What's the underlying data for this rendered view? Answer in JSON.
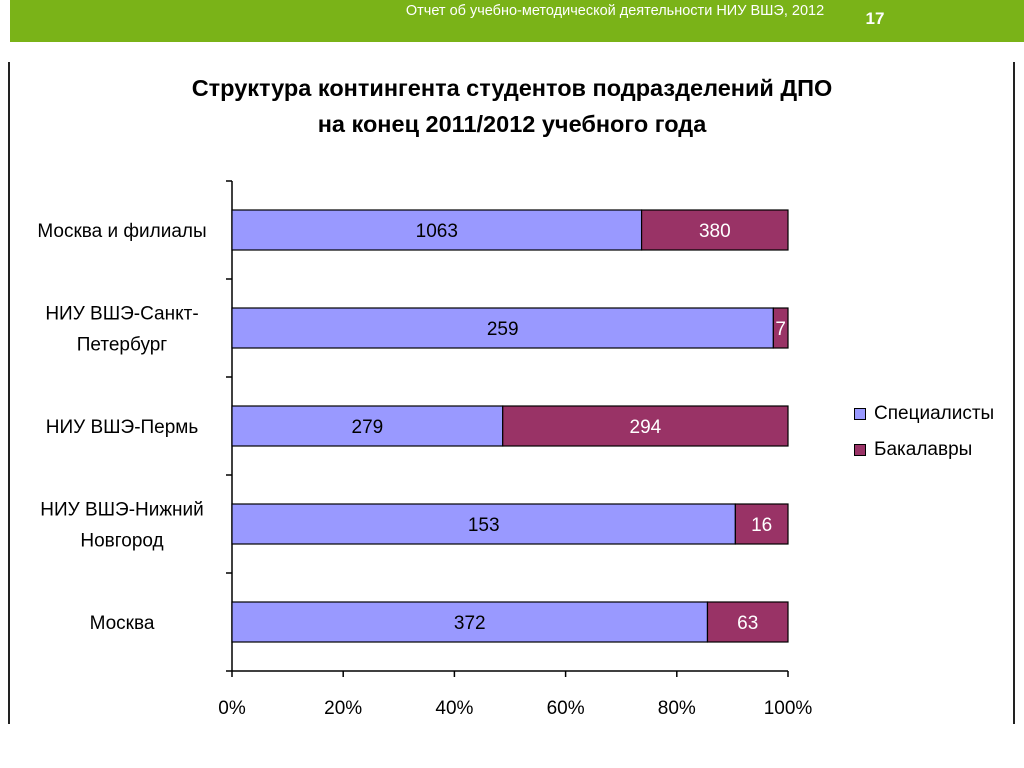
{
  "header": {
    "report_title": "Отчет об учебно-методической деятельности НИУ ВШЭ, 2012",
    "page_number": "17"
  },
  "colors": {
    "brand_green": "#7ab318",
    "specialists": "#9999ff",
    "bachelors": "#993366"
  },
  "chart_data": {
    "type": "bar",
    "orientation": "horizontal",
    "stacked": "percent",
    "title_line1": "Структура контингента студентов подразделений ДПО",
    "title_line2": "на конец 2011/2012 учебного года",
    "categories": [
      "Москва и филиалы",
      "НИУ ВШЭ-Санкт-Петербург",
      "НИУ ВШЭ-Пермь",
      "НИУ ВШЭ-Нижний Новгород",
      "Москва"
    ],
    "category_lines": [
      [
        "Москва и филиалы"
      ],
      [
        "НИУ ВШЭ-Санкт-",
        "Петербург"
      ],
      [
        "НИУ ВШЭ-Пермь"
      ],
      [
        "НИУ ВШЭ-Нижний",
        "Новгород"
      ],
      [
        "Москва"
      ]
    ],
    "series": [
      {
        "name": "Специалисты",
        "values": [
          1063,
          259,
          279,
          153,
          372
        ]
      },
      {
        "name": "Бакалавры",
        "values": [
          380,
          7,
          294,
          16,
          63
        ]
      }
    ],
    "x_ticks": [
      "0%",
      "20%",
      "40%",
      "60%",
      "80%",
      "100%"
    ],
    "xlim": [
      0,
      100
    ],
    "grid": false,
    "legend_position": "right"
  }
}
